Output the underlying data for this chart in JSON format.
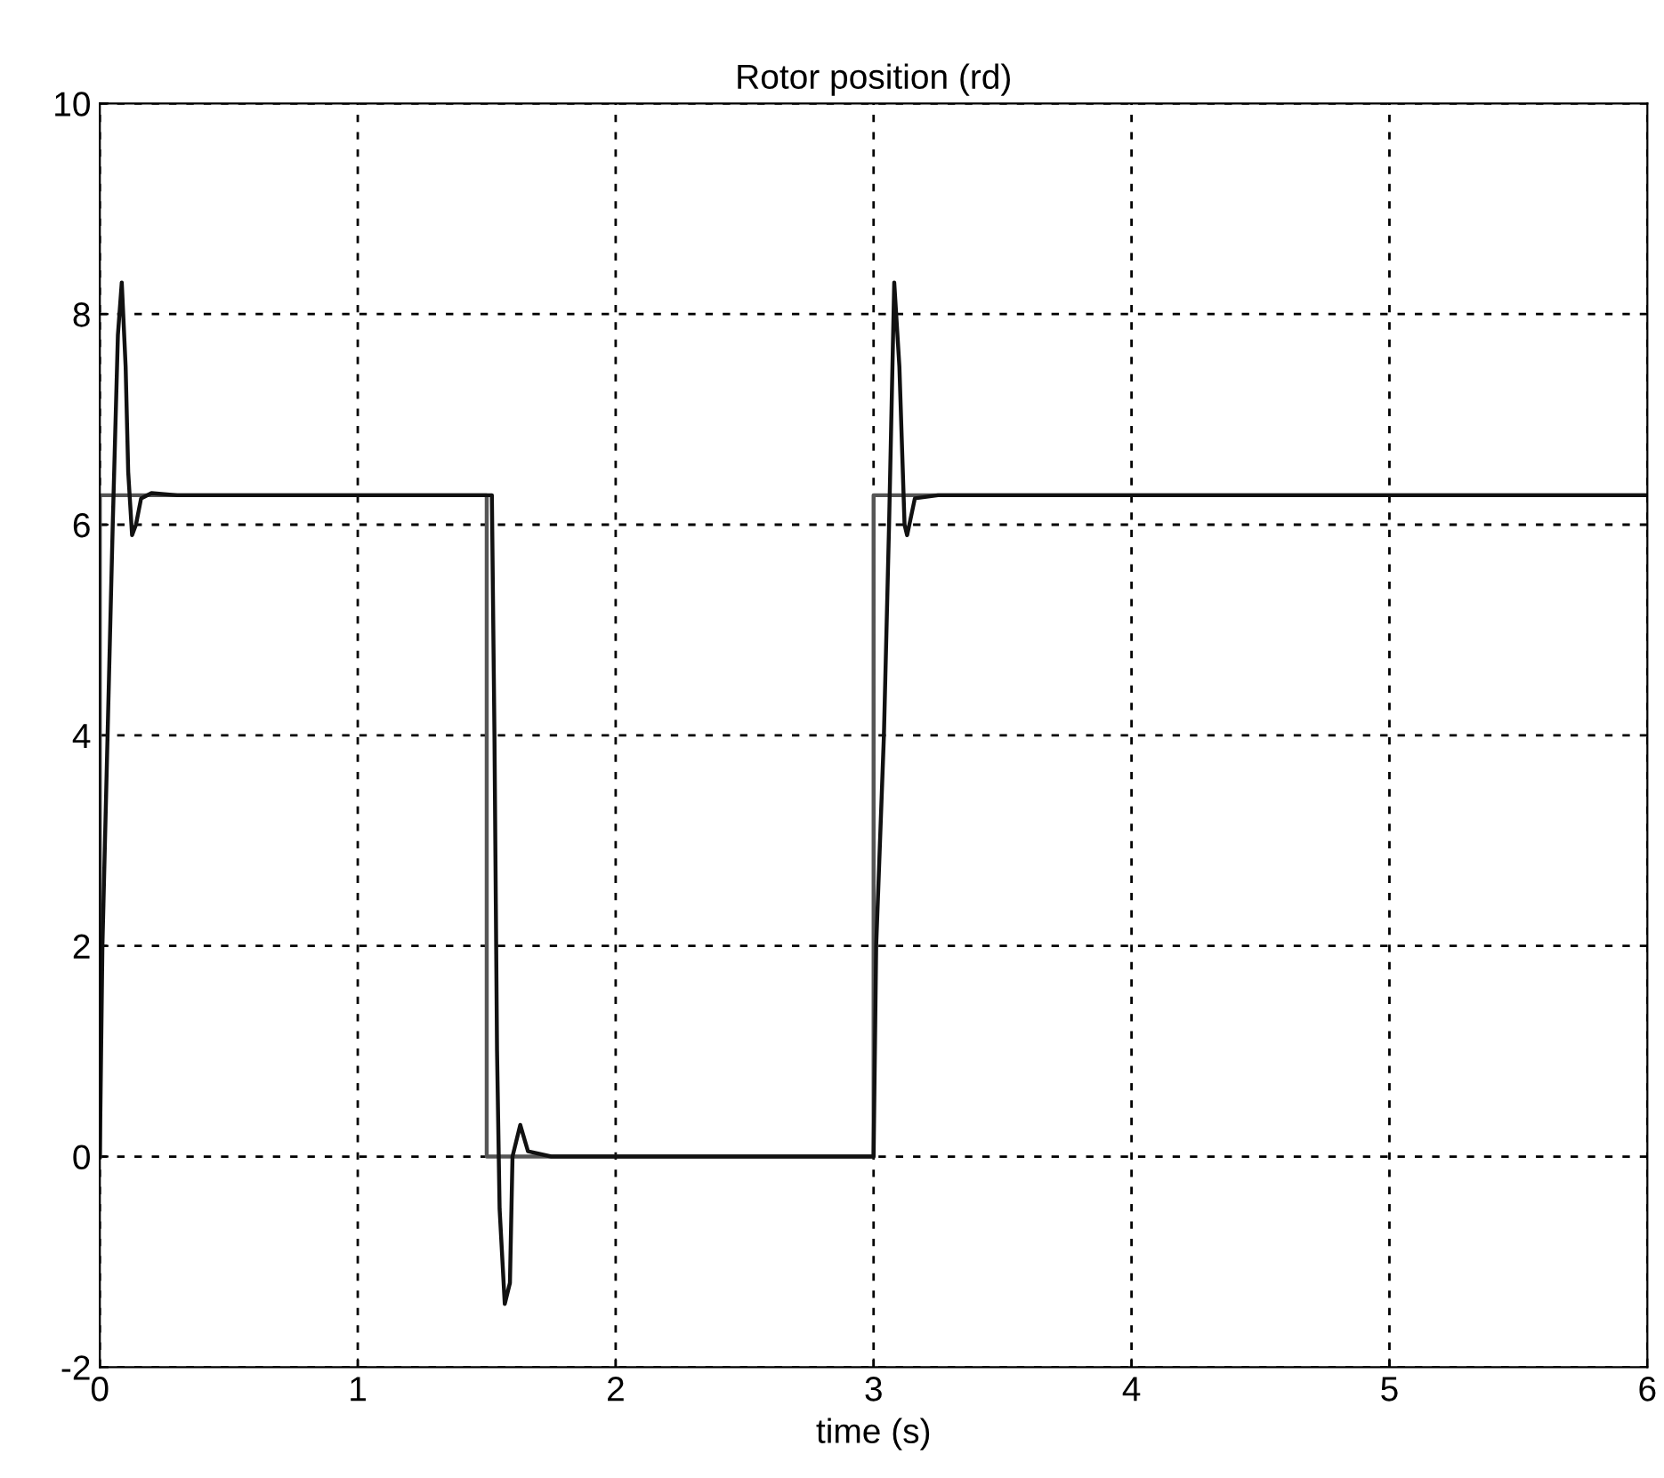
{
  "chart_data": {
    "type": "line",
    "title": "Rotor position (rd)",
    "xlabel": "time (s)",
    "xlim": [
      0,
      6
    ],
    "ylim": [
      -2,
      10
    ],
    "xticks": [
      0,
      1,
      2,
      3,
      4,
      5,
      6
    ],
    "yticks": [
      -2,
      0,
      2,
      4,
      6,
      8,
      10
    ],
    "grid": true,
    "line_style": "solid",
    "marker": "none",
    "series": [
      {
        "color": "#555555",
        "x": [
          0,
          0,
          1.5,
          1.5,
          3,
          3,
          6
        ],
        "values": [
          0,
          6.28,
          6.28,
          0,
          0,
          6.28,
          6.28
        ]
      },
      {
        "color": "#111111",
        "x": [
          0,
          0.01,
          0.03,
          0.05,
          0.07,
          0.085,
          0.1,
          0.11,
          0.125,
          0.14,
          0.16,
          0.2,
          0.3,
          1.52,
          1.53,
          1.54,
          1.55,
          1.57,
          1.59,
          1.6,
          1.63,
          1.66,
          1.75,
          3.0,
          3.01,
          3.04,
          3.06,
          3.08,
          3.1,
          3.12,
          3.13,
          3.16,
          3.25,
          6
        ],
        "values": [
          0,
          2,
          4,
          6,
          7.8,
          8.3,
          7.5,
          6.5,
          5.9,
          6.0,
          6.25,
          6.3,
          6.28,
          6.28,
          4,
          1,
          -0.5,
          -1.4,
          -1.2,
          0,
          0.3,
          0.05,
          0,
          0,
          2,
          4,
          6,
          8.3,
          7.5,
          6,
          5.9,
          6.25,
          6.28,
          6.28
        ]
      }
    ]
  }
}
